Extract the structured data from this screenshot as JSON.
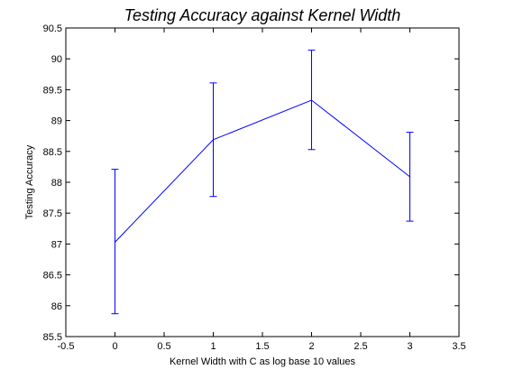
{
  "chart_data": {
    "type": "line",
    "title": "Testing Accuracy against Kernel Width",
    "xlabel": "Kernel Width with C as log base 10 values",
    "ylabel": "Testing Accuracy",
    "xlim": [
      -0.5,
      3.5
    ],
    "ylim": [
      85.5,
      90.5
    ],
    "xticks": [
      "-0.5",
      "0",
      "0.5",
      "1",
      "1.5",
      "2",
      "2.5",
      "3",
      "3.5"
    ],
    "yticks": [
      "85.5",
      "86",
      "86.5",
      "87",
      "87.5",
      "88",
      "88.5",
      "89",
      "89.5",
      "90",
      "90.5"
    ],
    "grid": false,
    "series": [
      {
        "color": "#0000ff",
        "x": [
          0,
          1,
          2,
          3
        ],
        "y": [
          87.03,
          88.69,
          89.33,
          88.09
        ],
        "err_low": [
          85.87,
          87.77,
          88.53,
          87.37
        ],
        "err_high": [
          88.21,
          89.61,
          90.14,
          88.81
        ]
      }
    ]
  }
}
